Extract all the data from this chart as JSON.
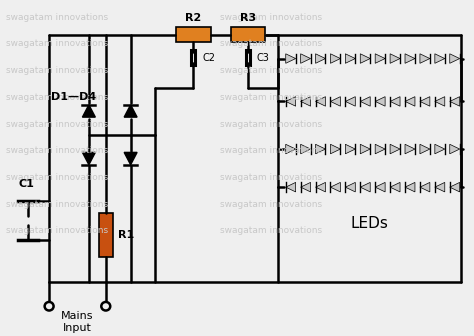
{
  "bg_color": "#efefef",
  "watermark_text": "swagatam innovations",
  "watermark_color": "#c8c8c8",
  "component_colors": {
    "resistor_orange": "#E08020",
    "resistor_r1": "#C85010",
    "wire": "#000000",
    "led_fill": "#d0d0d0",
    "led_stroke": "#000000"
  },
  "labels": {
    "R1": "R1",
    "R2": "R2",
    "R3": "R3",
    "C1": "C1",
    "C2": "C2",
    "C3": "C3",
    "D1D4": "D1—D4",
    "LEDs": "LEDs",
    "Mains": "Mains\nInput"
  }
}
